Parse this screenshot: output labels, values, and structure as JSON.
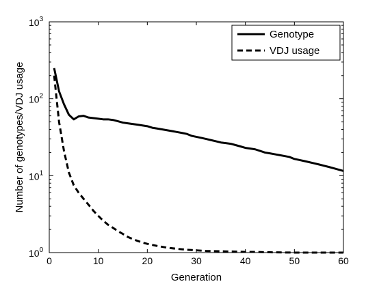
{
  "chart_data": {
    "type": "line",
    "title": "",
    "xlabel": "Generation",
    "ylabel": "Number of genotypes/VDJ usage",
    "xlim": [
      0,
      60
    ],
    "ylim": [
      1,
      1000
    ],
    "yscale": "log",
    "grid": false,
    "legend_position": "top-right",
    "x_ticks": [
      0,
      10,
      20,
      30,
      40,
      50,
      60
    ],
    "x_tick_labels": [
      "0",
      "10",
      "20",
      "30",
      "40",
      "50",
      "60"
    ],
    "y_ticks": [
      1,
      10,
      100,
      1000
    ],
    "y_tick_labels": [
      {
        "base": "10",
        "exp": "0"
      },
      {
        "base": "10",
        "exp": "1"
      },
      {
        "base": "10",
        "exp": "2"
      },
      {
        "base": "10",
        "exp": "3"
      }
    ],
    "series": [
      {
        "name": "Genotype",
        "style": "solid",
        "color": "#000000",
        "x": [
          1,
          2,
          3,
          4,
          5,
          6,
          7,
          8,
          9,
          10,
          11,
          12,
          13,
          14,
          15,
          16,
          17,
          18,
          19,
          20,
          21,
          22,
          23,
          24,
          25,
          26,
          27,
          28,
          29,
          30,
          31,
          32,
          33,
          34,
          35,
          36,
          37,
          38,
          39,
          40,
          41,
          42,
          43,
          44,
          45,
          46,
          47,
          48,
          49,
          50,
          51,
          52,
          53,
          54,
          55,
          56,
          57,
          58,
          59,
          60
        ],
        "y": [
          250,
          125,
          85,
          62,
          54,
          59,
          60,
          57,
          56,
          55,
          54,
          54,
          53,
          51,
          49,
          48,
          47,
          46,
          45,
          44,
          42,
          41,
          40,
          39,
          38,
          37,
          36,
          35,
          33,
          32,
          31,
          30,
          29,
          28,
          27,
          26.5,
          26,
          25,
          24,
          23,
          22.5,
          22,
          21,
          20,
          19.5,
          19,
          18.5,
          18,
          17.5,
          16.5,
          16,
          15.5,
          15,
          14.5,
          14,
          13.5,
          13,
          12.5,
          12,
          11.5
        ]
      },
      {
        "name": "VDJ usage",
        "style": "dashed",
        "color": "#000000",
        "x": [
          1,
          2,
          3,
          4,
          5,
          6,
          7,
          8,
          9,
          10,
          11,
          12,
          13,
          14,
          15,
          16,
          17,
          18,
          19,
          20,
          22,
          24,
          26,
          28,
          30,
          32,
          35,
          38,
          40,
          42,
          45,
          50,
          55,
          60
        ],
        "y": [
          200,
          50,
          21,
          11,
          7.5,
          6,
          5,
          4.2,
          3.5,
          3.0,
          2.6,
          2.3,
          2.1,
          1.9,
          1.75,
          1.6,
          1.5,
          1.42,
          1.35,
          1.3,
          1.22,
          1.16,
          1.12,
          1.09,
          1.07,
          1.05,
          1.04,
          1.03,
          1.02,
          1.02,
          1.01,
          1.0,
          1.0,
          1.0
        ]
      }
    ]
  }
}
